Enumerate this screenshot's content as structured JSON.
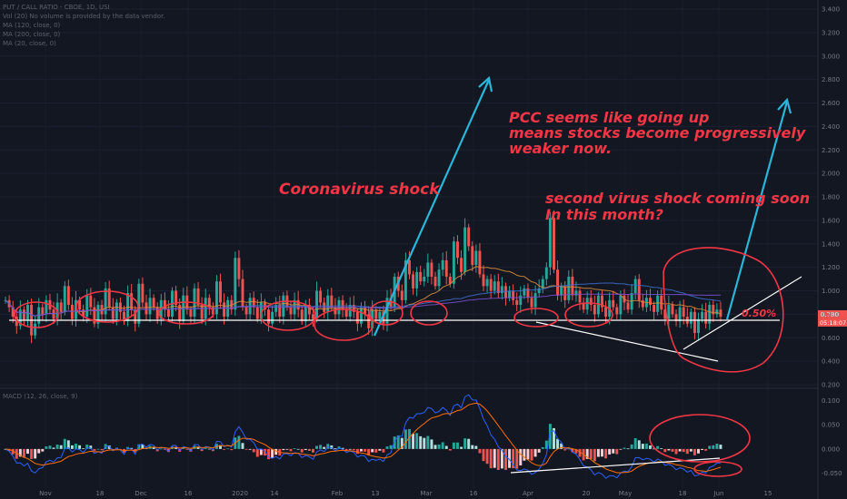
{
  "legend": {
    "symbol": "PUT / CALL RATIO - CBOE, 1D, USI",
    "volume_note": "Vol (20)  No volume is provided by the data vendor.",
    "ma1": "MA (120, close, 0)",
    "ma2": "MA (200, close, 0)",
    "ma3": "MA (20, close, 0)",
    "macd": "MACD (12, 26, close, 9)"
  },
  "annotations": {
    "coronavirus": "Coronavirus shock",
    "pcc_line1": "PCC seems like going up",
    "pcc_line2": "means stocks become progressively",
    "pcc_line3": "weaker now.",
    "second_line1": "second virus shock coming soon",
    "second_line2": "In this month?",
    "percent": "0.50%"
  },
  "colors": {
    "background": "#131722",
    "up": "#26a69a",
    "down": "#ef5350",
    "annotation_red": "#f23645",
    "arrow_cyan": "#29b6d9",
    "ma_orange": "#d8893b",
    "ma_blue": "#3d6dcc",
    "macd_line": "#2962ff",
    "signal_line": "#ff6d00"
  },
  "chart_data": [
    {
      "type": "candlestick",
      "title": "PUT / CALL RATIO - CBOE, 1D, USI",
      "ylim": [
        0.2,
        3.4
      ],
      "y_ticks": [
        "3.400",
        "3.200",
        "3.000",
        "2.800",
        "2.600",
        "2.400",
        "2.200",
        "2.000",
        "1.800",
        "1.600",
        "1.400",
        "1.200",
        "1.000",
        "0.800",
        "0.600",
        "0.400",
        "0.200"
      ],
      "x_ticks": [
        "Nov",
        "18",
        "Dec",
        "16",
        "2020",
        "14",
        "Feb",
        "13",
        "Mar",
        "16",
        "Apr",
        "20",
        "May",
        "18",
        "Jun",
        "15"
      ],
      "current_value": "0.780",
      "countdown": "05:18:07",
      "horizontal_level": 0.75,
      "closes": [
        0.92,
        0.86,
        0.78,
        0.7,
        0.84,
        0.75,
        0.88,
        0.62,
        0.72,
        0.86,
        0.8,
        0.92,
        0.84,
        0.76,
        0.9,
        0.82,
        1.04,
        0.88,
        0.76,
        0.92,
        0.84,
        0.78,
        0.96,
        0.86,
        0.72,
        0.88,
        0.8,
        1.02,
        0.86,
        0.76,
        0.9,
        0.82,
        0.74,
        0.98,
        0.84,
        0.72,
        1.06,
        0.9,
        0.8,
        0.94,
        0.86,
        0.76,
        0.92,
        0.84,
        0.78,
        1.0,
        0.88,
        0.74,
        0.96,
        0.84,
        0.78,
        1.02,
        0.88,
        0.76,
        0.94,
        0.86,
        0.8,
        1.08,
        0.9,
        0.78,
        0.92,
        0.84,
        1.28,
        1.1,
        0.86,
        0.8,
        0.94,
        0.86,
        0.76,
        0.9,
        0.84,
        0.72,
        0.82,
        0.88,
        0.78,
        0.96,
        0.86,
        0.8,
        0.92,
        0.84,
        0.74,
        0.88,
        0.8,
        0.76,
        1.0,
        0.9,
        0.82,
        0.96,
        0.86,
        0.8,
        0.92,
        0.84,
        0.78,
        0.88,
        0.82,
        0.72,
        0.86,
        0.8,
        0.68,
        0.84,
        0.76,
        0.82,
        0.72,
        0.94,
        0.86,
        1.12,
        1.0,
        0.92,
        1.26,
        1.14,
        1.02,
        1.16,
        1.08,
        1.12,
        1.24,
        1.12,
        1.04,
        1.18,
        1.26,
        1.12,
        1.06,
        1.42,
        1.28,
        1.16,
        1.54,
        1.38,
        1.22,
        1.34,
        1.14,
        1.04,
        1.1,
        1.0,
        1.08,
        0.98,
        1.04,
        0.94,
        1.0,
        0.92,
        0.88,
        0.96,
        1.02,
        0.94,
        0.86,
        0.98,
        1.02,
        1.1,
        1.2,
        1.62,
        1.18,
        0.96,
        1.04,
        0.92,
        1.12,
        0.96,
        1.0,
        0.9,
        0.84,
        0.94,
        0.88,
        0.8,
        0.96,
        0.86,
        0.78,
        0.92,
        0.86,
        0.8,
        0.96,
        0.9,
        0.84,
        0.98,
        1.1,
        0.92,
        0.86,
        0.94,
        0.88,
        0.82,
        0.96,
        0.84,
        0.76,
        0.88,
        0.8,
        0.74,
        0.86,
        0.78,
        0.72,
        0.82,
        0.64,
        0.76,
        0.82,
        0.72,
        0.88,
        0.8,
        0.84,
        0.78
      ]
    },
    {
      "type": "bar",
      "title": "MACD (12, 26, close, 9)",
      "ylim": [
        -0.075,
        0.125
      ],
      "y_ticks": [
        "0.100",
        "0.050",
        "0.000",
        "-0.050"
      ]
    }
  ]
}
